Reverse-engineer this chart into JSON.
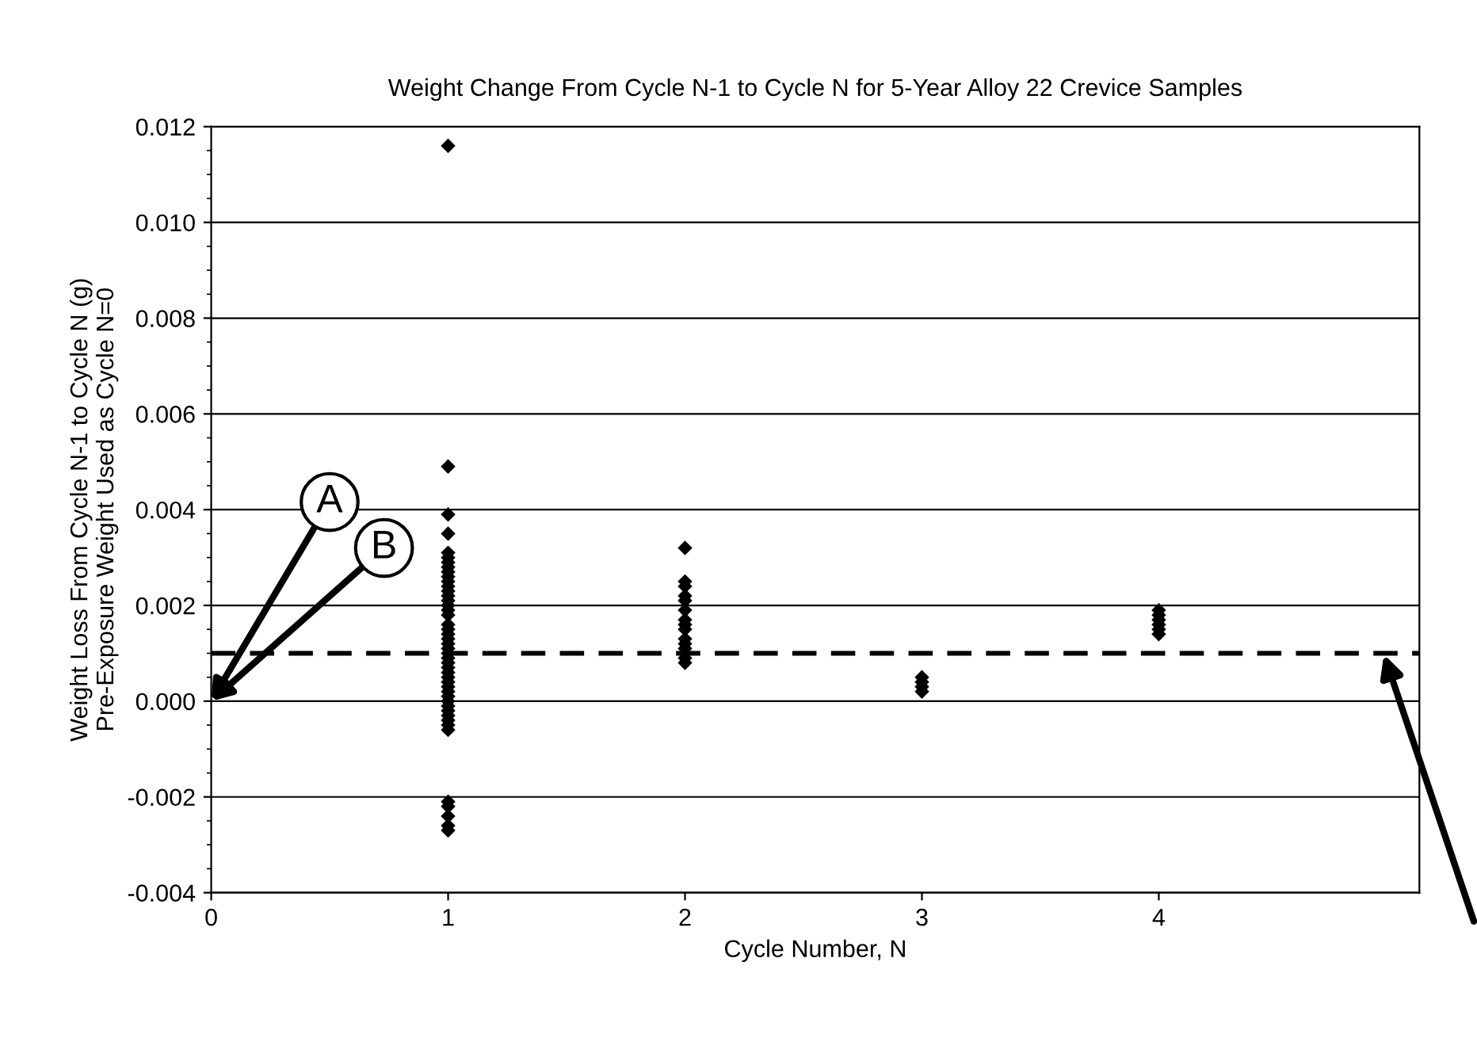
{
  "chart_data": {
    "type": "scatter",
    "title": "Weight Change From Cycle N-1 to Cycle N for 5-Year Alloy 22 Crevice Samples",
    "xlabel": "Cycle Number, N",
    "ylabel": "Weight Loss From Cycle N-1 to Cycle N (g)\nPre-Exposure Weight Used as Cycle N=0",
    "series": [
      {
        "color": "#000000",
        "x": [
          1,
          1,
          1,
          1,
          1,
          1,
          1,
          1,
          1,
          1,
          1,
          1,
          1,
          1,
          1,
          1,
          1,
          1,
          1,
          1,
          1,
          1,
          1,
          1,
          1,
          1,
          1,
          1,
          1,
          1,
          1,
          1,
          1,
          1,
          1,
          1,
          1,
          1,
          1,
          1,
          1,
          1,
          1,
          1,
          1,
          1,
          2,
          2,
          2,
          2,
          2,
          2,
          2,
          2,
          2,
          2,
          2,
          2,
          2,
          2,
          3,
          3,
          3,
          3,
          4,
          4,
          4,
          4,
          4,
          4
        ],
        "values": [
          0.0116,
          0.0049,
          0.0039,
          0.0035,
          0.0031,
          0.003,
          0.0029,
          0.0028,
          0.0027,
          0.0026,
          0.0025,
          0.0024,
          0.0023,
          0.0022,
          0.0021,
          0.002,
          0.0019,
          0.0018,
          0.0016,
          0.0015,
          0.0014,
          0.0013,
          0.0012,
          0.0011,
          0.001,
          0.0009,
          0.0008,
          0.0007,
          0.0006,
          0.0005,
          0.0004,
          0.0003,
          0.0002,
          0.0001,
          0.0,
          -0.0001,
          -0.0002,
          -0.0003,
          -0.0004,
          -0.0005,
          -0.0006,
          -0.0021,
          -0.0022,
          -0.0024,
          -0.0026,
          -0.0027,
          0.0032,
          0.0025,
          0.0024,
          0.0022,
          0.0021,
          0.0019,
          0.0017,
          0.0016,
          0.0015,
          0.0013,
          0.0012,
          0.0011,
          0.0009,
          0.0008,
          0.0005,
          0.0004,
          0.0003,
          0.0002,
          0.0019,
          0.0018,
          0.0017,
          0.0016,
          0.0015,
          0.0014
        ]
      }
    ],
    "marker": "diamond",
    "xlim": [
      0,
      5.1
    ],
    "xticks": [
      0,
      1,
      2,
      3,
      4
    ],
    "ylim": [
      -0.004,
      0.012
    ],
    "yticks": [
      {
        "value": -0.004,
        "label": "-0.004"
      },
      {
        "value": -0.002,
        "label": "-0.002"
      },
      {
        "value": 0,
        "label": "0.000"
      },
      {
        "value": 0.002,
        "label": "0.002"
      },
      {
        "value": 0.004,
        "label": "0.004"
      },
      {
        "value": 0.006,
        "label": "0.006"
      },
      {
        "value": 0.008,
        "label": "0.008"
      },
      {
        "value": 0.01,
        "label": "0.010"
      },
      {
        "value": 0.012,
        "label": "0.012"
      }
    ],
    "grid": "y",
    "ref_lines": [
      {
        "axis": "y",
        "value": 0.001,
        "color": "#000000",
        "line_style": "dashed"
      }
    ],
    "annotations": [
      "A",
      "B"
    ]
  }
}
